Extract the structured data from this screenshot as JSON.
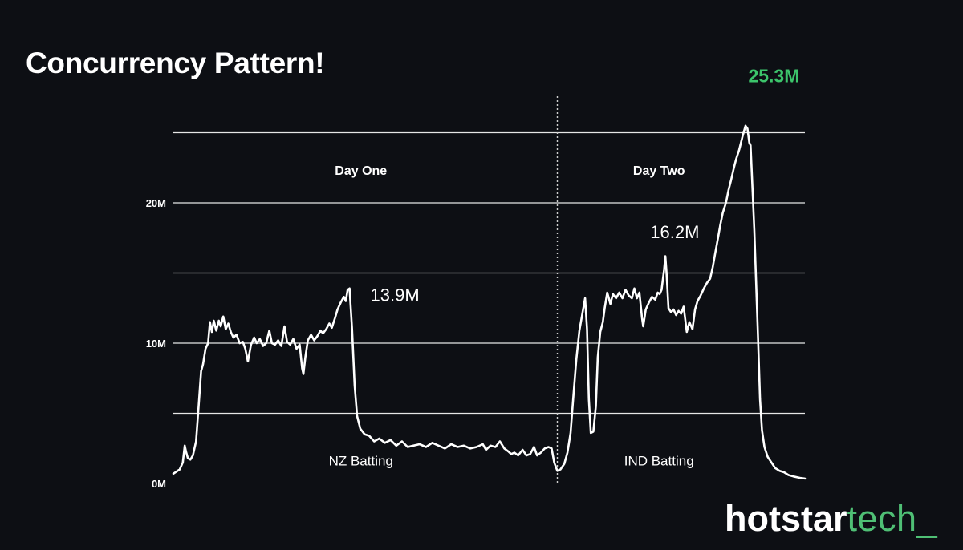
{
  "slide": {
    "title": "Concurrency Pattern!"
  },
  "brand": {
    "primary": "hotstar",
    "secondary": "tech",
    "cursor": "_",
    "accent_color": "#4fbf75"
  },
  "chart_data": {
    "type": "line",
    "title": "",
    "xlabel": "",
    "ylabel": "",
    "ylim": [
      0,
      25
    ],
    "y_ticks": [
      {
        "value": 0,
        "label": "0M"
      },
      {
        "value": 10,
        "label": "10M"
      },
      {
        "value": 20,
        "label": "20M"
      }
    ],
    "gridlines": [
      5,
      10,
      15,
      20,
      25
    ],
    "grid": true,
    "x_range": [
      0,
      100
    ],
    "line_color": "#ffffff",
    "divider_x": 60.8,
    "sections": [
      {
        "label": "Day One",
        "x": 29.7,
        "y": 22.0
      },
      {
        "label": "Day Two",
        "x": 76.9,
        "y": 22.0
      }
    ],
    "segment_labels": [
      {
        "label": "NZ Batting",
        "x": 29.7,
        "y": 1.3
      },
      {
        "label": "IND Batting",
        "x": 76.9,
        "y": 1.3
      }
    ],
    "annotations": [
      {
        "text": "13.9M",
        "x": 31.2,
        "y": 13.0,
        "color": "#ffffff",
        "weight": "normal",
        "size": 22
      },
      {
        "text": "16.2M",
        "x": 79.4,
        "y": 17.5,
        "color": "#ffffff",
        "weight": "normal",
        "size": 22
      },
      {
        "text": "25.3M",
        "x": 95.1,
        "y": 28.6,
        "color": "#3cc46b",
        "weight": "bold",
        "size": 23
      }
    ],
    "series": [
      {
        "values": [
          [
            0,
            0.7
          ],
          [
            1.0,
            1.0
          ],
          [
            1.5,
            1.5
          ],
          [
            1.8,
            2.7
          ],
          [
            2.0,
            2.3
          ],
          [
            2.3,
            1.8
          ],
          [
            2.7,
            1.7
          ],
          [
            3.1,
            2.0
          ],
          [
            3.6,
            3.0
          ],
          [
            4.0,
            5.5
          ],
          [
            4.4,
            8.0
          ],
          [
            4.7,
            8.5
          ],
          [
            5.1,
            9.6
          ],
          [
            5.5,
            10.0
          ],
          [
            5.8,
            11.5
          ],
          [
            6.1,
            10.8
          ],
          [
            6.4,
            11.6
          ],
          [
            6.8,
            10.9
          ],
          [
            7.2,
            11.6
          ],
          [
            7.5,
            11.2
          ],
          [
            7.9,
            11.9
          ],
          [
            8.3,
            11.0
          ],
          [
            8.7,
            11.4
          ],
          [
            9.1,
            10.8
          ],
          [
            9.5,
            10.4
          ],
          [
            10.0,
            10.6
          ],
          [
            10.5,
            10.0
          ],
          [
            11.0,
            10.1
          ],
          [
            11.4,
            9.6
          ],
          [
            11.8,
            8.7
          ],
          [
            12.3,
            9.9
          ],
          [
            12.8,
            10.4
          ],
          [
            13.2,
            10.0
          ],
          [
            13.7,
            10.3
          ],
          [
            14.2,
            9.8
          ],
          [
            14.7,
            10.0
          ],
          [
            15.2,
            10.9
          ],
          [
            15.6,
            10.0
          ],
          [
            16.1,
            9.9
          ],
          [
            16.6,
            10.2
          ],
          [
            17.1,
            9.8
          ],
          [
            17.6,
            11.2
          ],
          [
            18.0,
            10.1
          ],
          [
            18.5,
            9.9
          ],
          [
            19.0,
            10.3
          ],
          [
            19.5,
            9.6
          ],
          [
            20.0,
            9.9
          ],
          [
            20.4,
            8.2
          ],
          [
            20.6,
            7.8
          ],
          [
            20.9,
            9.0
          ],
          [
            21.3,
            10.2
          ],
          [
            21.8,
            10.6
          ],
          [
            22.3,
            10.2
          ],
          [
            22.8,
            10.5
          ],
          [
            23.3,
            10.9
          ],
          [
            23.7,
            10.7
          ],
          [
            24.2,
            11.0
          ],
          [
            24.7,
            11.4
          ],
          [
            25.1,
            11.1
          ],
          [
            25.6,
            11.8
          ],
          [
            26.0,
            12.4
          ],
          [
            26.5,
            12.9
          ],
          [
            27.0,
            13.3
          ],
          [
            27.3,
            13.0
          ],
          [
            27.6,
            13.8
          ],
          [
            27.9,
            13.9
          ],
          [
            28.3,
            11.0
          ],
          [
            28.7,
            7.0
          ],
          [
            29.1,
            4.8
          ],
          [
            29.6,
            3.9
          ],
          [
            30.3,
            3.5
          ],
          [
            31.0,
            3.4
          ],
          [
            31.8,
            3.0
          ],
          [
            32.6,
            3.2
          ],
          [
            33.5,
            2.9
          ],
          [
            34.4,
            3.1
          ],
          [
            35.3,
            2.7
          ],
          [
            36.2,
            3.0
          ],
          [
            37.1,
            2.6
          ],
          [
            38.0,
            2.7
          ],
          [
            39.0,
            2.8
          ],
          [
            40.0,
            2.6
          ],
          [
            41.0,
            2.9
          ],
          [
            42.0,
            2.7
          ],
          [
            43.0,
            2.5
          ],
          [
            44.0,
            2.8
          ],
          [
            45.0,
            2.6
          ],
          [
            46.0,
            2.7
          ],
          [
            47.0,
            2.5
          ],
          [
            48.0,
            2.6
          ],
          [
            49.0,
            2.8
          ],
          [
            49.5,
            2.4
          ],
          [
            50.2,
            2.7
          ],
          [
            51.0,
            2.6
          ],
          [
            51.7,
            3.0
          ],
          [
            52.4,
            2.5
          ],
          [
            53.0,
            2.3
          ],
          [
            53.5,
            2.1
          ],
          [
            54.0,
            2.2
          ],
          [
            54.6,
            2.0
          ],
          [
            55.3,
            2.4
          ],
          [
            55.9,
            2.0
          ],
          [
            56.5,
            2.1
          ],
          [
            57.1,
            2.6
          ],
          [
            57.6,
            2.0
          ],
          [
            58.2,
            2.2
          ],
          [
            58.8,
            2.5
          ],
          [
            59.4,
            2.6
          ],
          [
            59.9,
            2.5
          ],
          [
            60.3,
            1.5
          ],
          [
            60.8,
            0.9
          ],
          [
            61.3,
            1.0
          ],
          [
            61.9,
            1.4
          ],
          [
            62.4,
            2.2
          ],
          [
            62.9,
            3.6
          ],
          [
            63.3,
            6.0
          ],
          [
            63.8,
            8.8
          ],
          [
            64.3,
            10.9
          ],
          [
            64.8,
            12.2
          ],
          [
            65.2,
            13.2
          ],
          [
            65.5,
            11.0
          ],
          [
            65.8,
            6.0
          ],
          [
            66.1,
            3.6
          ],
          [
            66.5,
            3.7
          ],
          [
            66.9,
            5.5
          ],
          [
            67.2,
            9.0
          ],
          [
            67.6,
            10.8
          ],
          [
            68.0,
            11.5
          ],
          [
            68.3,
            12.5
          ],
          [
            68.7,
            13.6
          ],
          [
            69.2,
            12.8
          ],
          [
            69.6,
            13.5
          ],
          [
            70.1,
            13.2
          ],
          [
            70.6,
            13.6
          ],
          [
            71.1,
            13.2
          ],
          [
            71.6,
            13.8
          ],
          [
            72.1,
            13.4
          ],
          [
            72.6,
            13.2
          ],
          [
            73.0,
            13.9
          ],
          [
            73.4,
            13.2
          ],
          [
            73.8,
            13.6
          ],
          [
            74.2,
            11.8
          ],
          [
            74.4,
            11.2
          ],
          [
            74.8,
            12.4
          ],
          [
            75.3,
            12.9
          ],
          [
            75.8,
            13.3
          ],
          [
            76.3,
            13.1
          ],
          [
            76.7,
            13.6
          ],
          [
            77.0,
            13.5
          ],
          [
            77.3,
            13.8
          ],
          [
            77.5,
            14.5
          ],
          [
            77.7,
            15.2
          ],
          [
            77.9,
            16.2
          ],
          [
            78.1,
            15.0
          ],
          [
            78.4,
            12.5
          ],
          [
            78.8,
            12.2
          ],
          [
            79.2,
            12.4
          ],
          [
            79.6,
            12.0
          ],
          [
            80.0,
            12.3
          ],
          [
            80.4,
            12.1
          ],
          [
            80.8,
            12.6
          ],
          [
            81.1,
            11.5
          ],
          [
            81.3,
            10.8
          ],
          [
            81.7,
            11.5
          ],
          [
            82.2,
            11.0
          ],
          [
            82.6,
            12.4
          ],
          [
            83.0,
            13.0
          ],
          [
            83.5,
            13.4
          ],
          [
            84.0,
            13.9
          ],
          [
            84.5,
            14.3
          ],
          [
            85.0,
            14.6
          ],
          [
            85.4,
            15.4
          ],
          [
            85.8,
            16.4
          ],
          [
            86.2,
            17.4
          ],
          [
            86.6,
            18.4
          ],
          [
            87.0,
            19.3
          ],
          [
            87.5,
            20.0
          ],
          [
            87.9,
            20.9
          ],
          [
            88.3,
            21.6
          ],
          [
            88.7,
            22.4
          ],
          [
            89.1,
            23.1
          ],
          [
            89.6,
            23.8
          ],
          [
            90.1,
            24.7
          ],
          [
            90.6,
            25.5
          ],
          [
            90.9,
            25.3
          ],
          [
            91.2,
            24.3
          ],
          [
            91.4,
            24.1
          ],
          [
            91.7,
            21.0
          ],
          [
            92.0,
            18.0
          ],
          [
            92.3,
            14.0
          ],
          [
            92.6,
            10.0
          ],
          [
            92.9,
            6.0
          ],
          [
            93.2,
            3.8
          ],
          [
            93.6,
            2.6
          ],
          [
            94.1,
            1.9
          ],
          [
            94.7,
            1.5
          ],
          [
            95.3,
            1.1
          ],
          [
            96.0,
            0.9
          ],
          [
            96.7,
            0.8
          ],
          [
            97.4,
            0.6
          ],
          [
            98.2,
            0.5
          ],
          [
            99.2,
            0.4
          ],
          [
            100,
            0.35
          ]
        ]
      }
    ]
  }
}
